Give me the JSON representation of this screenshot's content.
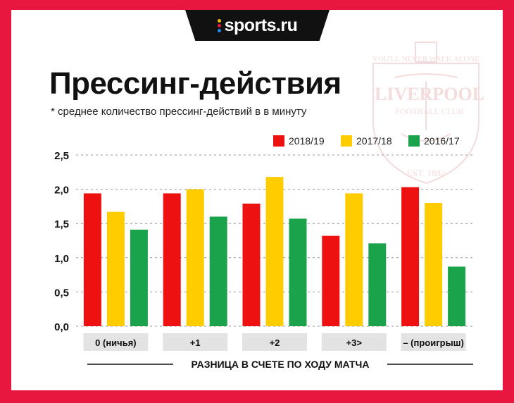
{
  "brand": {
    "name": "sports.ru",
    "dot_colors": [
      "#f5b800",
      "#e8173f",
      "#1e88e5"
    ]
  },
  "watermark": {
    "motto": "YOU'LL NEVER WALK ALONE",
    "name": "LIVERPOOL",
    "club": "FOOTBALL CLUB",
    "est": "EST. 1892"
  },
  "colors": {
    "frame": "#e8173f"
  },
  "chart_data": {
    "type": "bar",
    "title": "Прессинг-действия",
    "subtitle": "* среднее количество прессинг-действий в в минуту",
    "xlabel": "РАЗНИЦА В СЧЕТЕ ПО ХОДУ МАТЧА",
    "ylabel": "",
    "ylim": [
      0,
      2.5
    ],
    "yticks": [
      0,
      0.5,
      1,
      1.5,
      2,
      2.5
    ],
    "ytick_labels": [
      "0,0",
      "0,5",
      "1,0",
      "1,5",
      "2,0",
      "2,5"
    ],
    "grid": true,
    "legend_position": "top-right",
    "categories": [
      "0 (ничья)",
      "+1",
      "+2",
      "+3>",
      "– (проигрыш)"
    ],
    "series": [
      {
        "name": "2018/19",
        "color": "#ee1111",
        "values": [
          1.94,
          1.94,
          1.79,
          1.32,
          2.03
        ]
      },
      {
        "name": "2017/18",
        "color": "#ffcc00",
        "values": [
          1.67,
          2.0,
          2.18,
          1.94,
          1.8
        ]
      },
      {
        "name": "2016/17",
        "color": "#1aa34a",
        "values": [
          1.41,
          1.6,
          1.57,
          1.21,
          0.87
        ]
      }
    ]
  }
}
